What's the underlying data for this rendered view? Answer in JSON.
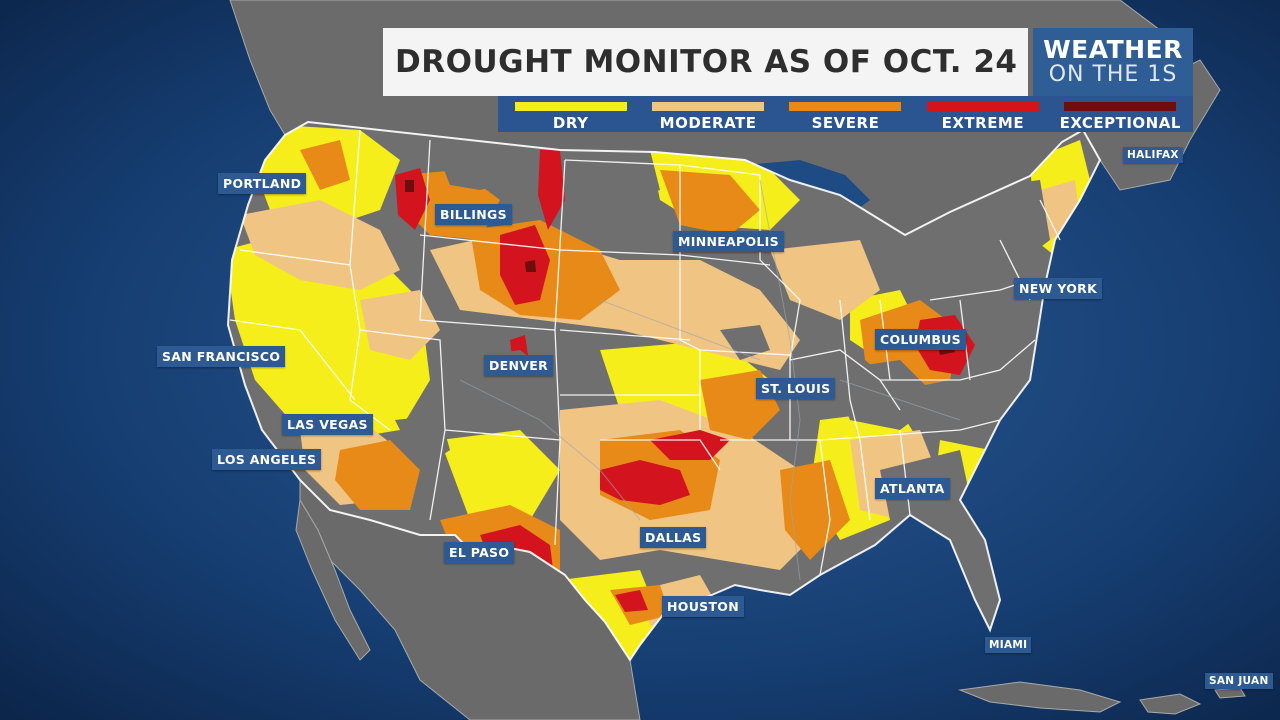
{
  "title": "DROUGHT MONITOR AS OF OCT. 24",
  "brand": {
    "line1": "WEATHER",
    "line2": "ON THE 1S"
  },
  "legend": [
    {
      "label": "DRY",
      "color": "#f6ee1a"
    },
    {
      "label": "MODERATE",
      "color": "#f0c483"
    },
    {
      "label": "SEVERE",
      "color": "#e88a17"
    },
    {
      "label": "EXTREME",
      "color": "#d3141e"
    },
    {
      "label": "EXCEPTIONAL",
      "color": "#6d0d0d"
    }
  ],
  "cities": {
    "portland": "PORTLAND",
    "billings": "BILLINGS",
    "minneapolis": "MINNEAPOLIS",
    "new_york": "NEW YORK",
    "halifax": "HALIFAX",
    "san_francisco": "SAN FRANCISCO",
    "denver": "DENVER",
    "columbus": "COLUMBUS",
    "st_louis": "ST. LOUIS",
    "las_vegas": "LAS VEGAS",
    "los_angeles": "LOS ANGELES",
    "atlanta": "ATLANTA",
    "dallas": "DALLAS",
    "el_paso": "EL PASO",
    "houston": "HOUSTON",
    "miami": "MIAMI",
    "san_juan": "SAN JUAN"
  },
  "colors": {
    "ocean": "#14386b",
    "land_none": "#6f6f6f",
    "border": "#ffffff"
  }
}
